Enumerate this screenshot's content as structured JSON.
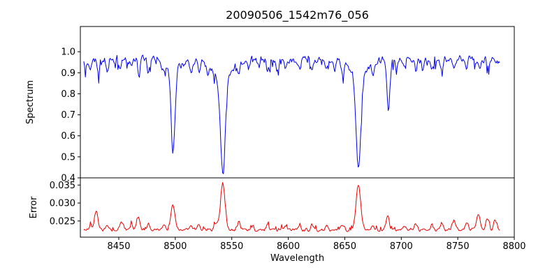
{
  "title": "20090506_1542m76_056",
  "axes": {
    "xlabel": "Wavelength",
    "xlim": [
      8416,
      8800
    ],
    "xticks": [
      8450,
      8500,
      8550,
      8600,
      8650,
      8700,
      8750,
      8800
    ]
  },
  "chart_data": [
    {
      "type": "line",
      "name": "spectrum",
      "model": "absorption",
      "ylabel": "Spectrum",
      "color": "#0000ee",
      "ylim": [
        0.4,
        1.12
      ],
      "yticks": [
        {
          "value": 0.4,
          "label": "0.4"
        },
        {
          "value": 0.5,
          "label": "0.5"
        },
        {
          "value": 0.6,
          "label": "0.6"
        },
        {
          "value": 0.7,
          "label": "0.7"
        },
        {
          "value": 0.8,
          "label": "0.8"
        },
        {
          "value": 0.9,
          "label": "0.9"
        },
        {
          "value": 1.0,
          "label": "1.0"
        }
      ],
      "x_range": [
        8419,
        8787
      ],
      "n_points": 500,
      "seed": 11,
      "continuum": 0.965,
      "noise_amplitude": 0.022,
      "absorption_lines": [
        {
          "center": 8498.0,
          "depth": 0.38,
          "sigma": 1.7,
          "wing_depth": 0.05,
          "wing_sigma": 6
        },
        {
          "center": 8542.1,
          "depth": 0.46,
          "sigma": 2.1,
          "wing_depth": 0.09,
          "wing_sigma": 9
        },
        {
          "center": 8662.1,
          "depth": 0.45,
          "sigma": 2.0,
          "wing_depth": 0.08,
          "wing_sigma": 8
        },
        {
          "center": 8688.6,
          "depth": 0.24,
          "sigma": 1.4
        }
      ],
      "minor_dips": [
        [
          8421,
          0.04
        ],
        [
          8425,
          0.05
        ],
        [
          8432,
          0.08
        ],
        [
          8440,
          0.05
        ],
        [
          8451,
          0.06
        ],
        [
          8461,
          0.04
        ],
        [
          8468,
          0.08
        ],
        [
          8476,
          0.05
        ],
        [
          8489,
          0.04
        ],
        [
          8514,
          0.06
        ],
        [
          8521,
          0.05
        ],
        [
          8529,
          0.05
        ],
        [
          8556,
          0.05
        ],
        [
          8565,
          0.04
        ],
        [
          8574,
          0.04
        ],
        [
          8582,
          0.06
        ],
        [
          8590,
          0.04
        ],
        [
          8598,
          0.05
        ],
        [
          8610,
          0.05
        ],
        [
          8621,
          0.06
        ],
        [
          8634,
          0.05
        ],
        [
          8641,
          0.04
        ],
        [
          8648,
          0.06
        ],
        [
          8675,
          0.05
        ],
        [
          8696,
          0.05
        ],
        [
          8703,
          0.04
        ],
        [
          8713,
          0.06
        ],
        [
          8719,
          0.05
        ],
        [
          8727,
          0.04
        ],
        [
          8736,
          0.06
        ],
        [
          8747,
          0.05
        ],
        [
          8758,
          0.04
        ],
        [
          8770,
          0.04
        ],
        [
          8777,
          0.04
        ]
      ]
    },
    {
      "type": "line",
      "name": "error",
      "model": "emission",
      "ylabel": "Error",
      "color": "#ee0000",
      "ylim": [
        0.0205,
        0.037
      ],
      "yticks": [
        {
          "value": 0.025,
          "label": "0.025"
        },
        {
          "value": 0.03,
          "label": "0.030"
        },
        {
          "value": 0.035,
          "label": "0.035"
        }
      ],
      "x_range": [
        8419,
        8787
      ],
      "n_points": 500,
      "seed": 7,
      "baseline": 0.0225,
      "noise_amplitude": 0.00055,
      "peaks": [
        [
          8425,
          0.0015,
          1.2
        ],
        [
          8430,
          0.005,
          1.5
        ],
        [
          8440,
          0.0015,
          1.2
        ],
        [
          8452,
          0.002,
          1.3
        ],
        [
          8461,
          0.0015,
          1.2
        ],
        [
          8467,
          0.0035,
          1.5
        ],
        [
          8476,
          0.0018,
          1.2
        ],
        [
          8490,
          0.0012,
          1.2
        ],
        [
          8498,
          0.007,
          1.8
        ],
        [
          8514,
          0.0015,
          1.2
        ],
        [
          8521,
          0.0015,
          1.2
        ],
        [
          8536,
          0.002,
          1.5
        ],
        [
          8542,
          0.0128,
          2.0
        ],
        [
          8556,
          0.0015,
          1.2
        ],
        [
          8568,
          0.0012,
          1.2
        ],
        [
          8582,
          0.0015,
          1.2
        ],
        [
          8598,
          0.0012,
          1.2
        ],
        [
          8610,
          0.0012,
          1.2
        ],
        [
          8621,
          0.0015,
          1.2
        ],
        [
          8634,
          0.0012,
          1.2
        ],
        [
          8648,
          0.0015,
          1.2
        ],
        [
          8662,
          0.0128,
          2.0
        ],
        [
          8675,
          0.0015,
          1.2
        ],
        [
          8688,
          0.004,
          1.4
        ],
        [
          8703,
          0.0012,
          1.2
        ],
        [
          8713,
          0.0018,
          1.2
        ],
        [
          8727,
          0.0015,
          1.2
        ],
        [
          8736,
          0.0018,
          1.2
        ],
        [
          8747,
          0.0025,
          1.3
        ],
        [
          8758,
          0.002,
          1.3
        ],
        [
          8768,
          0.0045,
          1.6
        ],
        [
          8776,
          0.003,
          1.4
        ],
        [
          8783,
          0.0025,
          1.3
        ]
      ]
    }
  ]
}
